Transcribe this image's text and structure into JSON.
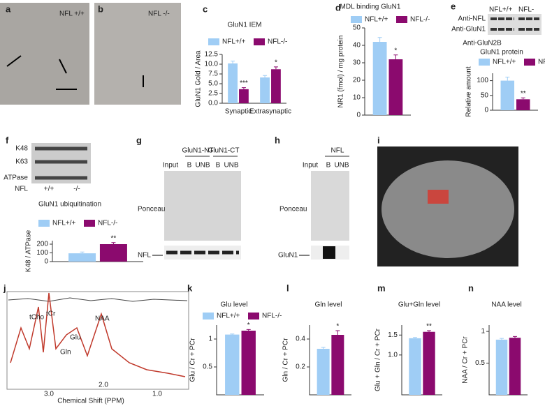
{
  "panels": {
    "a": {
      "label": "a",
      "genotype": "NFL +/+"
    },
    "b": {
      "label": "b",
      "genotype": "NFL -/-"
    },
    "e": {
      "label": "e",
      "lanes": [
        "NFL+/+",
        "NFL-"
      ],
      "rows": [
        "Anti-NFL",
        "Anti-GluN1"
      ],
      "extra": "Anti-GluN2B",
      "caption": "GluN1 protein"
    },
    "f": {
      "label": "f",
      "rows": [
        "K48",
        "K63",
        "ATPase"
      ],
      "row_label": "NFL",
      "lanes": [
        "+/+",
        "-/-"
      ],
      "caption": "GluN1 ubiquitination"
    },
    "g": {
      "label": "g",
      "groups": [
        "GluN1-NT",
        "GluN1-CT"
      ],
      "lanes": [
        "Input",
        "B",
        "UNB",
        "B",
        "UNB"
      ],
      "stain": "Ponceau",
      "band": "NFL"
    },
    "h": {
      "label": "h",
      "group": "NFL",
      "lanes": [
        "Input",
        "B",
        "UNB"
      ],
      "stain": "Ponceau",
      "band": "GluN1"
    },
    "i": {
      "label": "i"
    },
    "j": {
      "label": "j",
      "peaks": [
        "tCho",
        "tCr",
        "NAA",
        "Glu",
        "Gln"
      ],
      "ticks": [
        "3.0",
        "2.0",
        "1.0"
      ],
      "xlabel": "Chemical Shift (PPM)"
    }
  },
  "chart_data": [
    {
      "type": "bar",
      "label": "c",
      "title": "GluN1 IEM",
      "ylabel": "GluN1 Gold / Area",
      "categories": [
        "Synaptic",
        "Extrasynaptic"
      ],
      "series": [
        {
          "name": "NFL+/+",
          "color": "#9fcdf5",
          "values": [
            10.2,
            6.6
          ],
          "errors": [
            0.6,
            0.5
          ]
        },
        {
          "name": "NFL-/-",
          "color": "#8b0a6e",
          "values": [
            3.6,
            8.7
          ],
          "errors": [
            0.4,
            0.6
          ]
        }
      ],
      "annotations": [
        "***",
        "*"
      ],
      "ylim": [
        0,
        12.5
      ],
      "yticks": [
        {
          "value": 0,
          "label": "0.0"
        },
        2.5,
        {
          "value": 5,
          "label": "5.0"
        },
        7.5,
        {
          "value": 10,
          "label": "10.0"
        },
        12.5
      ]
    },
    {
      "type": "bar",
      "label": "d",
      "title": "MDL binding GluN1",
      "ylabel": "NR1 (fmol) / mg protein",
      "categories": [
        null
      ],
      "series": [
        {
          "name": "NFL+/+",
          "color": "#9fcdf5",
          "values": [
            42
          ],
          "errors": [
            2.5
          ]
        },
        {
          "name": "NFL-/-",
          "color": "#8b0a6e",
          "values": [
            32
          ],
          "errors": [
            2.5
          ]
        }
      ],
      "annotations": [
        "*"
      ],
      "ylim": [
        0,
        50
      ],
      "yticks": [
        0,
        10,
        20,
        30,
        40,
        50
      ]
    },
    {
      "type": "bar",
      "label": "e",
      "ylabel": "Relative amount",
      "categories": [
        null
      ],
      "series": [
        {
          "name": "NFL+/+",
          "color": "#9fcdf5",
          "values": [
            100
          ],
          "errors": [
            12
          ]
        },
        {
          "name": "NFL-/-",
          "color": "#8b0a6e",
          "values": [
            37
          ],
          "errors": [
            5
          ]
        }
      ],
      "annotations": [
        "**"
      ],
      "ylim": [
        0,
        125
      ],
      "yticks": [
        0,
        50,
        100
      ]
    },
    {
      "type": "bar",
      "ylabel": "K48 / ATPase",
      "categories": [
        null
      ],
      "series": [
        {
          "name": "NFL+/+",
          "color": "#9fcdf5",
          "values": [
            95
          ],
          "errors": [
            15
          ]
        },
        {
          "name": "NFL-/-",
          "color": "#8b0a6e",
          "values": [
            200
          ],
          "errors": [
            18
          ]
        }
      ],
      "annotations": [
        "**"
      ],
      "ylim": [
        0,
        240
      ],
      "yticks": [
        0,
        100,
        200
      ]
    },
    {
      "type": "bar",
      "label": "k",
      "title": "Glu level",
      "ylabel": "Glu / Cr + PCr",
      "categories": [
        null
      ],
      "series": [
        {
          "name": "NFL+/+",
          "color": "#9fcdf5",
          "values": [
            1.08
          ],
          "errors": [
            0.01
          ]
        },
        {
          "name": "NFL-/-",
          "color": "#8b0a6e",
          "values": [
            1.15
          ],
          "errors": [
            0.02
          ]
        }
      ],
      "annotations": [
        "*"
      ],
      "ylim": [
        0,
        1.25
      ],
      "yticks": [
        0.5,
        1
      ]
    },
    {
      "type": "bar",
      "label": "l",
      "title": "Gln level",
      "ylabel": "Gln / Cr + PCr",
      "categories": [
        null
      ],
      "series": [
        {
          "color": "#9fcdf5",
          "values": [
            0.33
          ],
          "errors": [
            0.01
          ]
        },
        {
          "color": "#8b0a6e",
          "values": [
            0.43
          ],
          "errors": [
            0.03
          ]
        }
      ],
      "annotations": [
        "*"
      ],
      "ylim": [
        0,
        0.5
      ],
      "yticks": [
        0.2,
        0.4
      ]
    },
    {
      "type": "bar",
      "label": "m",
      "title": "Glu+Gln level",
      "ylabel": "Glu + Gln / Cr + PCr",
      "categories": [
        null
      ],
      "series": [
        {
          "color": "#9fcdf5",
          "values": [
            1.42
          ],
          "errors": [
            0.02
          ]
        },
        {
          "color": "#8b0a6e",
          "values": [
            1.58
          ],
          "errors": [
            0.03
          ]
        }
      ],
      "annotations": [
        "**"
      ],
      "ylim": [
        0,
        1.75
      ],
      "yticks": [
        {
          "value": 1,
          "label": "1.0"
        },
        1.5
      ]
    },
    {
      "type": "bar",
      "label": "n",
      "title": "NAA level",
      "ylabel": "NAA / Cr + PCr",
      "categories": [
        null
      ],
      "series": [
        {
          "color": "#9fcdf5",
          "values": [
            0.87
          ],
          "errors": [
            0.02
          ]
        },
        {
          "color": "#8b0a6e",
          "values": [
            0.9
          ],
          "errors": [
            0.02
          ]
        }
      ],
      "ylim": [
        0,
        1.1
      ],
      "yticks": [
        0.5,
        1
      ]
    }
  ]
}
